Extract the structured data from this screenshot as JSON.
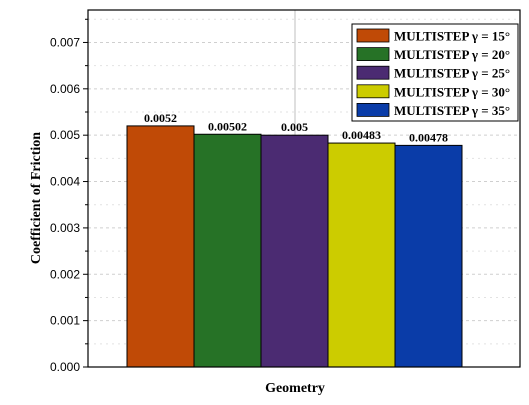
{
  "chart_data": {
    "type": "bar",
    "title": "",
    "xlabel": "Geometry",
    "ylabel": "Coefficient of Friction",
    "ylim": [
      0,
      0.0077
    ],
    "yticks": [
      "0.000",
      "0.001",
      "0.002",
      "0.003",
      "0.004",
      "0.005",
      "0.006",
      "0.007"
    ],
    "ytick_values": [
      0,
      0.001,
      0.002,
      0.003,
      0.004,
      0.005,
      0.006,
      0.007
    ],
    "grid": true,
    "legend_position": "top-right",
    "series": [
      {
        "name": "MULTISTEP γ = 15°",
        "value": 0.0052,
        "label": "0.0052",
        "color": "#c04a06"
      },
      {
        "name": "MULTISTEP γ = 20°",
        "value": 0.00502,
        "label": "0.00502",
        "color": "#267226"
      },
      {
        "name": "MULTISTEP γ = 25°",
        "value": 0.005,
        "label": "0.005",
        "color": "#4b2b72"
      },
      {
        "name": "MULTISTEP γ = 30°",
        "value": 0.00483,
        "label": "0.00483",
        "color": "#cccc00"
      },
      {
        "name": "MULTISTEP γ = 35°",
        "value": 0.00478,
        "label": "0.00478",
        "color": "#0a3ca8"
      }
    ]
  }
}
